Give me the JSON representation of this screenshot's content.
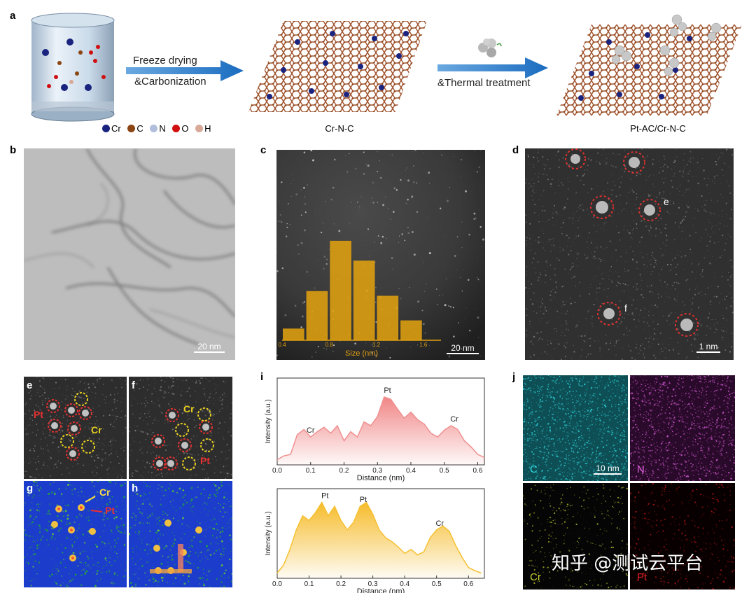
{
  "panels": {
    "a": "a",
    "b": "b",
    "c": "c",
    "d": "d",
    "e": "e",
    "f": "f",
    "g": "g",
    "h": "h",
    "i": "i",
    "j": "j"
  },
  "schematic": {
    "step1_line1": "Freeze drying",
    "step1_line2": "&Carbonization",
    "step2": "&Thermal treatment",
    "product1": "Cr-N-C",
    "product2": "Pt-AC/Cr-N-C",
    "legend": [
      {
        "label": "Cr",
        "color": "#1a237e"
      },
      {
        "label": "C",
        "color": "#8b4513"
      },
      {
        "label": "N",
        "color": "#b0bedc"
      },
      {
        "label": "O",
        "color": "#d01010"
      },
      {
        "label": "H",
        "color": "#d8a898"
      }
    ]
  },
  "scalebars": {
    "b": "20 nm",
    "c": "20 nm",
    "d": "1 nm",
    "j": "10 nm"
  },
  "panel_d": {
    "label_e": "e",
    "label_f": "f"
  },
  "panel_ef": {
    "pt": "Pt",
    "cr": "Cr"
  },
  "panel_gh": {
    "cr": "Cr",
    "pt": "Pt"
  },
  "panel_j": {
    "c": "C",
    "n": "N",
    "cr": "Cr",
    "pt": "Pt"
  },
  "watermark": "知乎 @测试云平台",
  "chart_data": [
    {
      "type": "bar",
      "panel": "c",
      "xlabel": "Size (nm)",
      "x_ticks": [
        0.4,
        0.8,
        1.2,
        1.6
      ],
      "bin_centers": [
        0.5,
        0.7,
        0.9,
        1.1,
        1.3,
        1.5
      ],
      "values": [
        0.1,
        0.42,
        0.85,
        0.68,
        0.38,
        0.17
      ],
      "ylim": [
        0,
        1
      ],
      "color": "#e0a010"
    },
    {
      "type": "area",
      "panel": "i-top",
      "xlabel": "Distance (nm)",
      "ylabel": "Intensity (a.u.)",
      "xlim": [
        0,
        0.62
      ],
      "x_ticks": [
        0.0,
        0.1,
        0.2,
        0.3,
        0.4,
        0.5,
        0.6
      ],
      "color": "#f09090",
      "annotations": [
        {
          "label": "Cr",
          "x": 0.1
        },
        {
          "label": "Pt",
          "x": 0.33
        },
        {
          "label": "Cr",
          "x": 0.53
        }
      ],
      "x": [
        0,
        0.02,
        0.04,
        0.06,
        0.08,
        0.1,
        0.12,
        0.14,
        0.16,
        0.18,
        0.2,
        0.22,
        0.24,
        0.26,
        0.28,
        0.3,
        0.32,
        0.34,
        0.36,
        0.38,
        0.4,
        0.42,
        0.44,
        0.46,
        0.48,
        0.5,
        0.52,
        0.54,
        0.56,
        0.58,
        0.6,
        0.62
      ],
      "y": [
        0.05,
        0.1,
        0.12,
        0.38,
        0.45,
        0.35,
        0.42,
        0.48,
        0.4,
        0.5,
        0.3,
        0.42,
        0.35,
        0.55,
        0.5,
        0.62,
        0.88,
        0.85,
        0.72,
        0.6,
        0.68,
        0.58,
        0.52,
        0.4,
        0.35,
        0.44,
        0.5,
        0.45,
        0.3,
        0.22,
        0.12,
        0.08
      ]
    },
    {
      "type": "area",
      "panel": "i-bottom",
      "xlabel": "Distance (nm)",
      "ylabel": "Intensity (a.u.)",
      "xlim": [
        0,
        0.65
      ],
      "x_ticks": [
        0.0,
        0.1,
        0.2,
        0.3,
        0.4,
        0.5,
        0.6
      ],
      "color": "#f5c030",
      "annotations": [
        {
          "label": "Pt",
          "x": 0.15
        },
        {
          "label": "Pt",
          "x": 0.27
        },
        {
          "label": "Cr",
          "x": 0.51
        }
      ],
      "x": [
        0,
        0.02,
        0.04,
        0.06,
        0.08,
        0.1,
        0.12,
        0.14,
        0.16,
        0.18,
        0.2,
        0.22,
        0.24,
        0.26,
        0.28,
        0.3,
        0.32,
        0.34,
        0.36,
        0.38,
        0.4,
        0.42,
        0.44,
        0.46,
        0.48,
        0.5,
        0.52,
        0.54,
        0.56,
        0.58,
        0.6,
        0.62,
        0.64
      ],
      "y": [
        0.05,
        0.15,
        0.35,
        0.6,
        0.78,
        0.72,
        0.82,
        0.95,
        0.78,
        0.9,
        0.72,
        0.6,
        0.7,
        0.9,
        0.95,
        0.8,
        0.6,
        0.5,
        0.45,
        0.38,
        0.3,
        0.35,
        0.28,
        0.32,
        0.5,
        0.6,
        0.65,
        0.58,
        0.4,
        0.25,
        0.12,
        0.08,
        0.05
      ]
    }
  ]
}
